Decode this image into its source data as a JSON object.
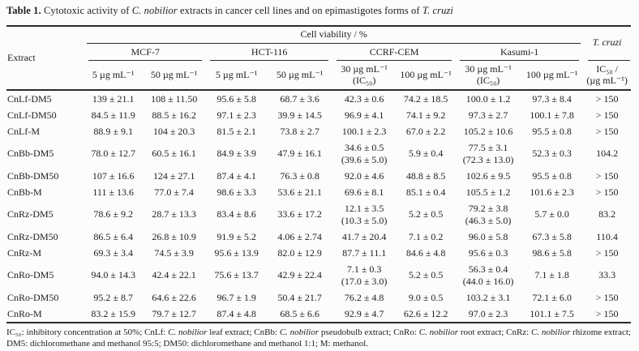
{
  "title_segments": [
    {
      "text": "Table 1. ",
      "style": "bold"
    },
    {
      "text": "Cytotoxic activity of ",
      "style": "normal"
    },
    {
      "text": "C. nobilior",
      "style": "italic"
    },
    {
      "text": " extracts in cancer cell lines and on epimastigotes forms of ",
      "style": "normal"
    },
    {
      "text": "T. cruzi",
      "style": "italic"
    }
  ],
  "table": {
    "header": {
      "extract_label": "Extract",
      "cell_viability_label": "Cell viability / %",
      "t_cruzi_label": "T. cruzi",
      "cell_lines": [
        {
          "name": "MCF-7",
          "concentrations": [
            "5 µg mL⁻¹",
            "50 µg mL⁻¹"
          ]
        },
        {
          "name": "HCT-116",
          "concentrations": [
            "5 µg mL⁻¹",
            "50 µg mL⁻¹"
          ]
        },
        {
          "name": "CCRF-CEM",
          "concentrations": [
            "30 µg mL⁻¹\n(IC₅₀)",
            "100 µg mL⁻¹"
          ]
        },
        {
          "name": "Kasumi-1",
          "concentrations": [
            "30 µg mL⁻¹\n(IC₅₀)",
            "100 µg mL⁻¹"
          ]
        }
      ],
      "ic50_label": "IC₅₀ /\n(µg mL⁻¹)"
    },
    "rows": [
      {
        "extract": "CnLf-DM5",
        "values": [
          "139 ± 21.1",
          "108 ± 11.50",
          "95.6 ± 5.8",
          "68.7 ± 3.6",
          "42.3 ± 0.6",
          "74.2 ± 18.5",
          "100.0 ± 1.2",
          "97.3 ± 8.4",
          "> 150"
        ]
      },
      {
        "extract": "CnLf-DM50",
        "values": [
          "84.5 ± 11.9",
          "88.5 ± 16.2",
          "97.1 ± 2.3",
          "39.9 ± 14.5",
          "96.9 ± 4.1",
          "74.1 ± 9.2",
          "97.3 ± 2.7",
          "100.1 ± 7.8",
          "> 150"
        ]
      },
      {
        "extract": "CnLf-M",
        "values": [
          "88.9 ± 9.1",
          "104 ± 20.3",
          "81.5 ± 2.1",
          "73.8 ± 2.7",
          "100.1 ± 2.3",
          "67.0 ± 2.2",
          "105.2 ± 10.6",
          "95.5 ± 0.8",
          "> 150"
        ]
      },
      {
        "extract": "CnBb-DM5",
        "values": [
          "78.0 ± 12.7",
          "60.5 ± 16.1",
          "84.9 ± 3.9",
          "47.9 ± 16.1",
          "34.6 ± 0.5\n(39.6 ± 5.0)",
          "5.9 ± 0.4",
          "77.5 ± 3.1\n(72.3 ± 13.0)",
          "52.3 ± 0.3",
          "104.2"
        ]
      },
      {
        "extract": "CnBb-DM50",
        "values": [
          "107 ± 16.6",
          "124 ± 27.1",
          "87.4 ± 4.1",
          "76.3 ± 0.8",
          "92.0 ± 4.6",
          "48.8 ± 8.5",
          "102.6 ± 9.5",
          "95.5 ± 0.8",
          "> 150"
        ]
      },
      {
        "extract": "CnBb-M",
        "values": [
          "111 ± 13.6",
          "77.0 ± 7.4",
          "98.6 ± 3.3",
          "53.6 ± 21.1",
          "69.6 ± 8.1",
          "85.1 ± 0.4",
          "105.5 ± 1.2",
          "101.6 ± 2.3",
          "> 150"
        ]
      },
      {
        "extract": "CnRz-DM5",
        "values": [
          "78.6 ± 9.2",
          "28.7 ± 13.3",
          "83.4 ± 8.6",
          "33.6 ± 17.2",
          "12.1 ± 3.5\n(10.3 ± 5.0)",
          "5.2 ± 0.5",
          "79.2 ± 3.8\n(46.3 ± 5.0)",
          "5.7 ± 0.0",
          "83.2"
        ]
      },
      {
        "extract": "CnRz-DM50",
        "values": [
          "86.5 ± 6.4",
          "26.8 ± 10.9",
          "91.9 ± 5.2",
          "4.06 ± 2.74",
          "41.7 ± 20.4",
          "7.1 ± 0.2",
          "96.0 ± 5.8",
          "67.3 ± 5.8",
          "110.4"
        ]
      },
      {
        "extract": "CnRz-M",
        "values": [
          "69.3 ± 3.4",
          "74.5 ± 3.9",
          "95.6 ± 13.9",
          "82.0 ± 12.9",
          "87.7 ± 11.1",
          "84.6 ± 4.8",
          "95.6 ± 0.3",
          "98.6 ± 5.8",
          "> 150"
        ]
      },
      {
        "extract": "CnRo-DM5",
        "values": [
          "94.0 ± 14.3",
          "42.4 ± 22.1",
          "75.6 ± 13.7",
          "42.9 ± 22.4",
          "7.1 ± 0.3\n(17.0 ± 3.0)",
          "5.2 ± 0.5",
          "56.3 ± 0.4\n(44.0 ± 16.0)",
          "7.1 ± 1.8",
          "33.3"
        ]
      },
      {
        "extract": "CnRo-DM50",
        "values": [
          "95.2 ± 8.7",
          "64.6 ± 22.6",
          "96.7 ± 1.9",
          "50.4 ± 21.7",
          "76.2 ± 4.8",
          "9.0 ± 0.5",
          "103.2 ± 3.1",
          "72.1 ± 6.0",
          "> 150"
        ]
      },
      {
        "extract": "CnRo-M",
        "values": [
          "83.2 ± 15.9",
          "79.7 ± 12.7",
          "87.4 ± 4.8",
          "68.5 ± 6.6",
          "92.9 ± 4.7",
          "62.6 ± 12.2",
          "97.0 ± 2.3",
          "101.1 ± 7.5",
          "> 150"
        ]
      }
    ]
  },
  "footnote_segments": [
    {
      "text": "IC₅₀: inhibitory concentration at 50%; CnLf: ",
      "style": "normal"
    },
    {
      "text": "C. nobilior",
      "style": "italic"
    },
    {
      "text": " leaf extract; CnBb: ",
      "style": "normal"
    },
    {
      "text": "C. nobilior",
      "style": "italic"
    },
    {
      "text": " pseudobulb extract; CnRo: ",
      "style": "normal"
    },
    {
      "text": "C. nobilior",
      "style": "italic"
    },
    {
      "text": " root extract; CnRz: ",
      "style": "normal"
    },
    {
      "text": "C. nobilior",
      "style": "italic"
    },
    {
      "text": " rhizome extract; DM5: dichloromethane and methanol 95:5; DM50: dichloromethane and methanol 1:1; M: methanol.",
      "style": "normal"
    }
  ]
}
